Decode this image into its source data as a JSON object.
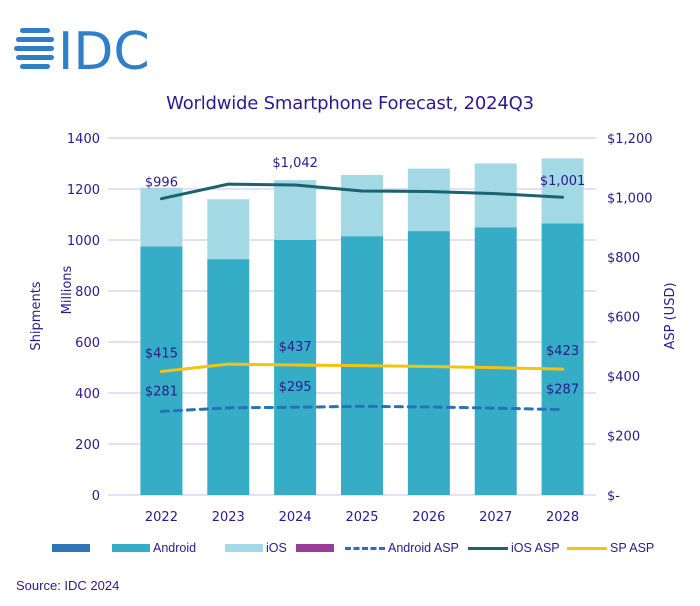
{
  "logo": {
    "text": "IDC",
    "color": "#2e7fc7"
  },
  "source": "Source: IDC 2024",
  "legend": [
    {
      "label": "",
      "type": "swatch",
      "color": "#2e75b6"
    },
    {
      "label": "Android",
      "type": "swatch",
      "color": "#36adc6"
    },
    {
      "label": "iOS",
      "type": "swatch",
      "color": "#a2d9e4"
    },
    {
      "label": "",
      "type": "swatch",
      "color": "#9b3c97"
    },
    {
      "label": "Android ASP",
      "type": "dashed",
      "color": "#2a72b8"
    },
    {
      "label": "iOS ASP",
      "type": "solid",
      "color": "#1a6370"
    },
    {
      "label": "SP ASP",
      "type": "solid",
      "color": "#f2c40f"
    }
  ],
  "chart_data": {
    "type": "bar",
    "title": "Worldwide Smartphone Forecast, 2024Q3",
    "categories": [
      "2022",
      "2023",
      "2024",
      "2025",
      "2026",
      "2027",
      "2028"
    ],
    "ylabel_left": [
      "Shipments",
      "Millions"
    ],
    "ylabel_right": "ASP (USD)",
    "ylim_left": [
      0,
      1400
    ],
    "ylim_right": [
      0,
      1200
    ],
    "yticks_left": [
      "0",
      "200",
      "400",
      "600",
      "800",
      "1000",
      "1200",
      "1400"
    ],
    "yticks_right": [
      "$-",
      "$200",
      "$400",
      "$600",
      "$800",
      "$1,000",
      "$1,200"
    ],
    "grid": true,
    "legend_position": "bottom",
    "series": [
      {
        "name": "Android",
        "kind": "stacked-bar",
        "axis": "left",
        "color": "#36adc6",
        "values": [
          975,
          925,
          1000,
          1015,
          1035,
          1050,
          1065
        ]
      },
      {
        "name": "iOS",
        "kind": "stacked-bar",
        "axis": "left",
        "color": "#a2d9e4",
        "values": [
          230,
          235,
          235,
          240,
          245,
          250,
          255
        ]
      },
      {
        "name": "iOS ASP",
        "kind": "line",
        "axis": "right",
        "color": "#1a6370",
        "dash": false,
        "values": [
          996,
          1045,
          1042,
          1022,
          1020,
          1013,
          1001
        ],
        "labels": [
          "$996",
          "",
          "$1,042",
          "",
          "",
          "",
          "$1,001"
        ]
      },
      {
        "name": "SP ASP",
        "kind": "line",
        "axis": "right",
        "color": "#f2c40f",
        "dash": false,
        "values": [
          415,
          440,
          437,
          435,
          432,
          428,
          423
        ],
        "labels": [
          "$415",
          "",
          "$437",
          "",
          "",
          "",
          "$423"
        ]
      },
      {
        "name": "Android ASP",
        "kind": "line",
        "axis": "right",
        "color": "#2a72b8",
        "dash": true,
        "values": [
          281,
          293,
          295,
          298,
          296,
          292,
          287
        ],
        "labels": [
          "$281",
          "",
          "$295",
          "",
          "",
          "",
          "$287"
        ]
      }
    ]
  }
}
